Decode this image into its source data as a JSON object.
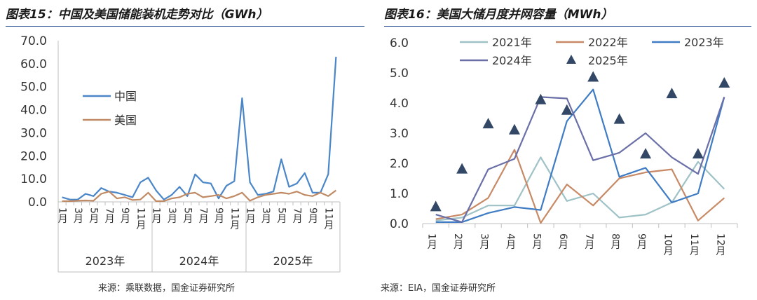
{
  "left": {
    "title": "图表15：中国及美国储能装机走势对比（GWh）",
    "source": "来源：乘联数据，国金证券研究所"
  },
  "right": {
    "title": "图表16：美国大储月度并网容量（MWh）",
    "source": "来源：EIA，国金证券研究所"
  },
  "chart_data": [
    {
      "type": "line",
      "title": "中国及美国储能装机走势对比（GWh）",
      "ylim": [
        0,
        70
      ],
      "yticks": [
        "0.0",
        "10.0",
        "20.0",
        "30.0",
        "40.0",
        "50.0",
        "60.0",
        "70.0"
      ],
      "xtick_labels": [
        "1月",
        "3月",
        "5月",
        "7月",
        "9月",
        "11月",
        "1月",
        "3月",
        "5月",
        "7月",
        "9月",
        "11月",
        "1月",
        "3月",
        "5月",
        "7月",
        "9月",
        "11月"
      ],
      "year_groups": [
        "2023年",
        "2024年",
        "2025年"
      ],
      "legend_position": "upper-left",
      "series": [
        {
          "name": "中国",
          "color": "#4a86c8",
          "values": [
            2,
            1,
            1,
            3.5,
            2.5,
            6,
            4.5,
            4,
            3,
            2,
            8.5,
            10.5,
            5,
            1,
            3,
            6.5,
            2.5,
            12,
            8.5,
            8,
            1.5,
            7,
            9,
            45,
            8.5,
            3,
            3.5,
            4.5,
            18.5,
            6.5,
            8,
            12.5,
            4,
            4,
            12,
            63
          ]
        },
        {
          "name": "美国",
          "color": "#c08a64",
          "values": [
            0.3,
            0.3,
            0.5,
            0.6,
            0.5,
            3.5,
            4.5,
            1.5,
            2,
            0.8,
            1,
            4,
            0.3,
            0.3,
            1.5,
            2,
            3.5,
            4,
            2,
            2.5,
            3,
            1.5,
            2.5,
            4,
            0.5,
            2,
            3,
            3.5,
            4,
            3.5,
            4.5,
            3,
            2.5,
            4,
            2.5,
            5
          ]
        }
      ]
    },
    {
      "type": "line",
      "title": "美国大储月度并网容量（MWh）",
      "ylim": [
        0,
        6
      ],
      "yticks": [
        "0.0",
        "1.0",
        "2.0",
        "3.0",
        "4.0",
        "5.0",
        "6.0"
      ],
      "categories": [
        "1月",
        "2月",
        "3月",
        "4月",
        "5月",
        "6月",
        "7月",
        "8月",
        "9月",
        "10月",
        "11月",
        "12月"
      ],
      "legend_position": "top",
      "series": [
        {
          "name": "2021年",
          "color": "#9ec2c6",
          "marker": "line",
          "values": [
            0.1,
            0.2,
            0.6,
            0.6,
            2.2,
            0.75,
            1.0,
            0.2,
            0.3,
            0.7,
            2.05,
            1.15
          ]
        },
        {
          "name": "2022年",
          "color": "#c88a66",
          "marker": "line",
          "values": [
            0.15,
            0.3,
            0.85,
            2.45,
            0.02,
            1.3,
            0.6,
            1.5,
            1.7,
            1.8,
            0.1,
            0.85
          ]
        },
        {
          "name": "2023年",
          "color": "#3f7cc4",
          "marker": "line",
          "values": [
            0.05,
            0.05,
            0.35,
            0.55,
            0.45,
            3.4,
            4.45,
            1.55,
            1.85,
            0.7,
            1.0,
            4.2
          ]
        },
        {
          "name": "2024年",
          "color": "#6a6fa8",
          "marker": "line",
          "values": [
            0.3,
            0.05,
            1.8,
            2.15,
            4.2,
            4.15,
            2.1,
            2.35,
            3.0,
            2.2,
            1.65,
            4.2
          ]
        },
        {
          "name": "2025年",
          "color": "#334766",
          "marker": "triangle",
          "values": [
            0.55,
            1.8,
            3.3,
            3.1,
            4.1,
            3.75,
            4.85,
            3.45,
            2.3,
            4.3,
            2.3,
            4.65
          ]
        }
      ]
    }
  ]
}
